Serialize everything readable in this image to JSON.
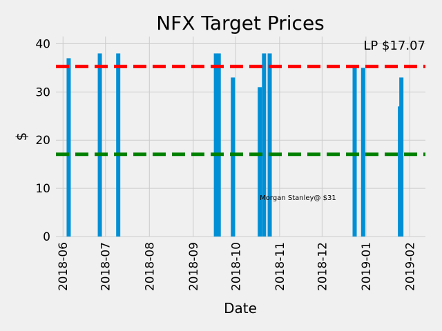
{
  "chart_data": {
    "type": "bar",
    "title": "NFX Target Prices",
    "xlabel": "Date",
    "ylabel": "$",
    "ylim": [
      0,
      41.5
    ],
    "xlim": [
      "2018-05-27",
      "2019-02-12"
    ],
    "grid": true,
    "y_ticks": [
      0,
      10,
      20,
      30,
      40
    ],
    "x_ticks": [
      "2018-06",
      "2018-07",
      "2018-08",
      "2018-09",
      "2018-10",
      "2018-11",
      "2018-12",
      "2019-01",
      "2019-02"
    ],
    "bar_color": "#008fd5",
    "bars": [
      {
        "date": "2018-06-05",
        "value": 37
      },
      {
        "date": "2018-06-27",
        "value": 38
      },
      {
        "date": "2018-07-10",
        "value": 38
      },
      {
        "date": "2018-09-17",
        "value": 38
      },
      {
        "date": "2018-09-19",
        "value": 38
      },
      {
        "date": "2018-09-29",
        "value": 33
      },
      {
        "date": "2018-10-18",
        "value": 31
      },
      {
        "date": "2018-10-21",
        "value": 38
      },
      {
        "date": "2018-10-25",
        "value": 38
      },
      {
        "date": "2018-12-24",
        "value": 35
      },
      {
        "date": "2018-12-30",
        "value": 35
      },
      {
        "date": "2019-01-25",
        "value": 27
      },
      {
        "date": "2019-01-26",
        "value": 33
      }
    ],
    "reference_lines": [
      {
        "value": 35.3,
        "color": "#ff0000",
        "style": "dashed"
      },
      {
        "value": 17.07,
        "color": "#008000",
        "style": "dashed"
      }
    ],
    "annotations": [
      {
        "text": "Morgan Stanley@ $31",
        "date": "2018-10-18",
        "value": 7.6
      }
    ],
    "corner_label": "LP $17.07"
  }
}
